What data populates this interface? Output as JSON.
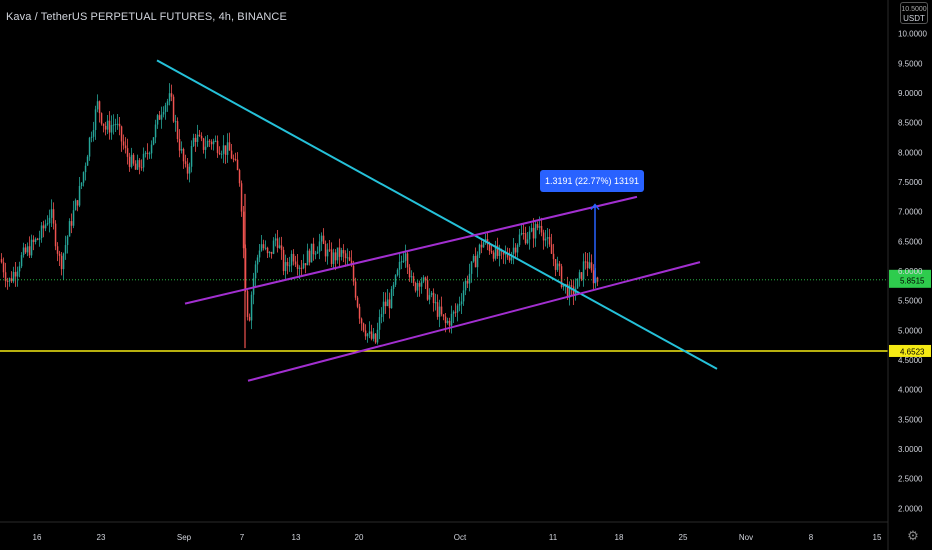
{
  "chart_data": {
    "type": "candlestick",
    "title": "Kava / TetherUS PERPETUAL FUTURES, 4h, BINANCE",
    "currency": "USDT",
    "ylim": [
      1.5,
      10.5
    ],
    "y_ticks": [
      "2.0000",
      "2.5000",
      "3.0000",
      "3.5000",
      "4.0000",
      "4.5000",
      "5.0000",
      "5.5000",
      "6.0000",
      "6.5000",
      "7.0000",
      "7.5000",
      "8.0000",
      "8.5000",
      "9.0000",
      "9.5000",
      "10.0000",
      "10.5000"
    ],
    "x_ticks": [
      "16",
      "23",
      "Sep",
      "7",
      "13",
      "20",
      "Oct",
      "11",
      "18",
      "25",
      "Nov",
      "8",
      "15"
    ],
    "price_series": [
      [
        0,
        6.2
      ],
      [
        8,
        5.8
      ],
      [
        20,
        6.2
      ],
      [
        30,
        6.4
      ],
      [
        40,
        6.6
      ],
      [
        50,
        7.0
      ],
      [
        60,
        6.1
      ],
      [
        70,
        6.8
      ],
      [
        80,
        7.4
      ],
      [
        90,
        8.3
      ],
      [
        97,
        8.8
      ],
      [
        105,
        8.4
      ],
      [
        115,
        8.5
      ],
      [
        125,
        8.0
      ],
      [
        135,
        7.7
      ],
      [
        145,
        7.9
      ],
      [
        155,
        8.4
      ],
      [
        162,
        8.8
      ],
      [
        170,
        8.9
      ],
      [
        178,
        8.2
      ],
      [
        186,
        7.6
      ],
      [
        194,
        8.3
      ],
      [
        202,
        8.1
      ],
      [
        210,
        8.2
      ],
      [
        220,
        8.1
      ],
      [
        230,
        8.0
      ],
      [
        240,
        7.5
      ],
      [
        244,
        6.0
      ],
      [
        248,
        5.1
      ],
      [
        252,
        5.8
      ],
      [
        260,
        6.5
      ],
      [
        268,
        6.2
      ],
      [
        276,
        6.6
      ],
      [
        284,
        6.0
      ],
      [
        292,
        6.3
      ],
      [
        300,
        6.1
      ],
      [
        310,
        6.3
      ],
      [
        320,
        6.5
      ],
      [
        330,
        6.2
      ],
      [
        340,
        6.3
      ],
      [
        350,
        6.1
      ],
      [
        360,
        5.2
      ],
      [
        368,
        4.9
      ],
      [
        375,
        4.8
      ],
      [
        382,
        5.4
      ],
      [
        390,
        5.5
      ],
      [
        398,
        6.0
      ],
      [
        405,
        6.4
      ],
      [
        412,
        5.7
      ],
      [
        420,
        5.9
      ],
      [
        428,
        5.6
      ],
      [
        435,
        5.4
      ],
      [
        445,
        5.1
      ],
      [
        455,
        5.3
      ],
      [
        465,
        5.8
      ],
      [
        475,
        6.2
      ],
      [
        482,
        6.5
      ],
      [
        490,
        6.4
      ],
      [
        500,
        6.2
      ],
      [
        510,
        6.3
      ],
      [
        520,
        6.6
      ],
      [
        530,
        6.6
      ],
      [
        540,
        6.8
      ],
      [
        548,
        6.4
      ],
      [
        556,
        6.1
      ],
      [
        562,
        5.8
      ],
      [
        570,
        5.6
      ],
      [
        578,
        5.8
      ],
      [
        585,
        6.2
      ],
      [
        592,
        5.9
      ],
      [
        598,
        5.85
      ]
    ],
    "horizontal_level": {
      "value": 4.6523,
      "label": "4.6523",
      "color": "#f5ea14"
    },
    "last_price": {
      "value": 5.8515,
      "label": "5.8515",
      "color": "#2ecc4d"
    },
    "trendlines": [
      {
        "name": "descending",
        "color": "#25c1d9",
        "from": [
          157,
          9.55
        ],
        "to": [
          717,
          4.35
        ]
      },
      {
        "name": "channel-upper",
        "color": "#a22fd0",
        "from": [
          185,
          5.45
        ],
        "to": [
          637,
          7.25
        ]
      },
      {
        "name": "channel-lower",
        "color": "#a22fd0",
        "from": [
          248,
          4.15
        ],
        "to": [
          700,
          6.15
        ]
      }
    ],
    "measure": {
      "label": "1.3191 (22.77%) 13191",
      "color": "#2962ff",
      "from": [
        595,
        5.8
      ],
      "to": [
        595,
        7.12
      ]
    }
  }
}
